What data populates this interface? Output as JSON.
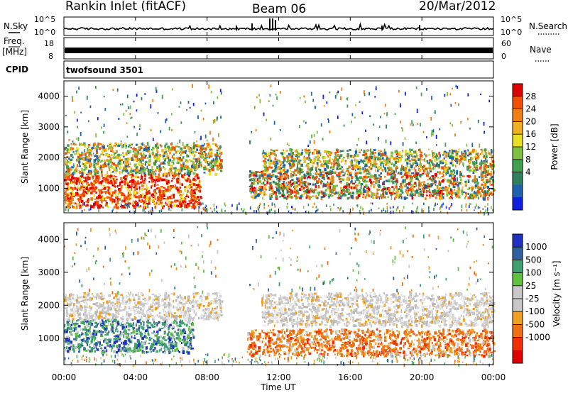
{
  "header": {
    "radar": "Rankin Inlet (fitACF)",
    "beam": "Beam 06",
    "date": "20/Mar/2012"
  },
  "strips": {
    "nsky_label": "N.Sky",
    "nsearch_label": "N.Search",
    "nsky_ticks": [
      "10^5",
      "10^0"
    ],
    "nsearch_ticks": [
      "10^5",
      "10^0"
    ],
    "freq_label_top": "Freq.",
    "freq_label_unit": "[MHz]",
    "freq_ticks": [
      "18",
      "8"
    ],
    "nave_label": "Nave",
    "nave_ticks": [
      "60",
      "0"
    ],
    "cpid_label": "CPID",
    "cpid_value": "twofsound 3501"
  },
  "x_axis": {
    "label": "Time UT",
    "ticks": [
      "00:00",
      "04:00",
      "08:00",
      "12:00",
      "16:00",
      "20:00",
      "00:00"
    ]
  },
  "chart_data": [
    {
      "type": "heatmap",
      "name": "power",
      "ylabel": "Slant Range [km]",
      "xlabel": "Time UT",
      "yticks": [
        "1000",
        "2000",
        "3000",
        "4000"
      ],
      "ylim": [
        200,
        4500
      ],
      "xlim_hours": [
        0,
        24
      ],
      "colorbar_label": "Power [dB]",
      "colorbar_ticks": [
        "28",
        "24",
        "20",
        "16",
        "12",
        "8",
        "4"
      ],
      "colorbar_colors": [
        "#e00000",
        "#f05000",
        "#f08010",
        "#f0b020",
        "#e8e020",
        "#80c040",
        "#40a050",
        "#308060",
        "#2060b0",
        "#1020e0"
      ],
      "regions": [
        {
          "t0": 0.0,
          "t1": 7.6,
          "r0": 400,
          "r1": 1500,
          "level": "high"
        },
        {
          "t0": 0.0,
          "t1": 8.8,
          "r0": 1500,
          "r1": 2500,
          "level": "mid"
        },
        {
          "t0": 10.3,
          "t1": 24.0,
          "r0": 700,
          "r1": 1600,
          "level": "mixed"
        },
        {
          "t0": 11.0,
          "t1": 24.0,
          "r0": 1600,
          "r1": 2300,
          "level": "mid"
        }
      ]
    },
    {
      "type": "heatmap",
      "name": "velocity",
      "ylabel": "Slant Range [km]",
      "xlabel": "Time UT",
      "yticks": [
        "1000",
        "2000",
        "3000",
        "4000"
      ],
      "ylim": [
        200,
        4500
      ],
      "xlim_hours": [
        0,
        24
      ],
      "colorbar_label": "Velocity [m s⁻¹]",
      "colorbar_ticks": [
        "1000",
        "500",
        "100",
        "25",
        "-25",
        "-100",
        "-500",
        "-1000"
      ],
      "colorbar_colors": [
        "#2030c0",
        "#3060a0",
        "#40a070",
        "#60c040",
        "#c8c8c8",
        "#c8c8c8",
        "#f0a020",
        "#f07010",
        "#f03000",
        "#e00000"
      ],
      "regions": [
        {
          "t0": 0.0,
          "t1": 7.2,
          "r0": 600,
          "r1": 1600,
          "level": "positive"
        },
        {
          "t0": 0.0,
          "t1": 8.8,
          "r0": 1600,
          "r1": 2400,
          "level": "near-zero"
        },
        {
          "t0": 10.2,
          "t1": 24.0,
          "r0": 500,
          "r1": 1300,
          "level": "negative"
        },
        {
          "t0": 11.0,
          "t1": 24.0,
          "r0": 1400,
          "r1": 2400,
          "level": "near-zero"
        }
      ]
    }
  ]
}
